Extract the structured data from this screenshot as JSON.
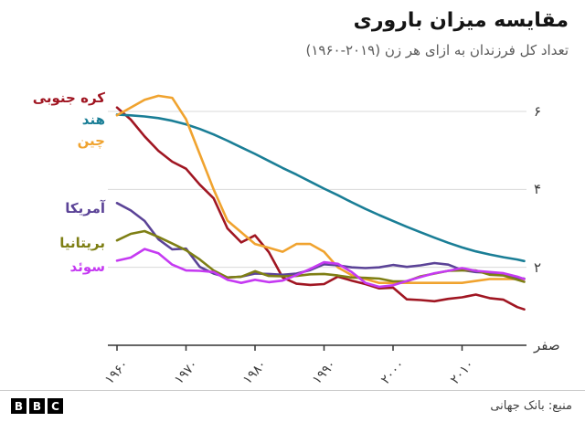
{
  "title": "مقایسه میزان باروری",
  "subtitle": "تعداد کل فرزندان به ازای هر زن (۲۰۱۹-۱۹۶۰)",
  "source": "منبع: بانک جهانی",
  "logo": {
    "letters": [
      "B",
      "B",
      "C"
    ]
  },
  "colors": {
    "axis": "#333333",
    "gridline": "#d9d9d9",
    "south_korea": "#a01622",
    "india": "#1a7e96",
    "china": "#f0a32f",
    "usa": "#5b4397",
    "uk": "#7e7f14",
    "sweden": "#c53af2"
  },
  "chart_data": {
    "type": "line",
    "title": "مقایسه میزان باروری",
    "subtitle": "تعداد کل فرزندان به ازای هر زن (۲۰۱۹-۱۹۶۰)",
    "xlabel": "",
    "ylabel": "",
    "ylim": [
      0,
      6.6
    ],
    "xlim": [
      1960,
      2019
    ],
    "grid": "horizontal",
    "legend_position": "left-of-lines",
    "x": [
      1960,
      1962,
      1964,
      1966,
      1968,
      1970,
      1972,
      1974,
      1976,
      1978,
      1980,
      1982,
      1984,
      1986,
      1988,
      1990,
      1992,
      1994,
      1996,
      1998,
      2000,
      2002,
      2004,
      2006,
      2008,
      2010,
      2012,
      2014,
      2016,
      2018,
      2019
    ],
    "x_ticks": [
      {
        "year": 1960,
        "label": "۱۹۶۰"
      },
      {
        "year": 1970,
        "label": "۱۹۷۰"
      },
      {
        "year": 1980,
        "label": "۱۹۸۰"
      },
      {
        "year": 1990,
        "label": "۱۹۹۰"
      },
      {
        "year": 2000,
        "label": "۲۰۰۰"
      },
      {
        "year": 2010,
        "label": "۲۰۱۰"
      }
    ],
    "y_ticks": [
      {
        "value": 6,
        "label": "۶"
      },
      {
        "value": 4,
        "label": "۴"
      },
      {
        "value": 2,
        "label": "۲"
      },
      {
        "value": 0,
        "label": "صفر"
      }
    ],
    "series": [
      {
        "name": "south-korea",
        "label": "کره جنوبی",
        "color": "#a01622",
        "values": [
          6.1,
          5.79,
          5.36,
          4.99,
          4.71,
          4.53,
          4.12,
          3.77,
          3.0,
          2.64,
          2.82,
          2.39,
          1.74,
          1.58,
          1.55,
          1.57,
          1.76,
          1.66,
          1.57,
          1.46,
          1.48,
          1.18,
          1.16,
          1.13,
          1.19,
          1.23,
          1.3,
          1.21,
          1.17,
          0.98,
          0.92
        ]
      },
      {
        "name": "india",
        "label": "هند",
        "color": "#1a7e96",
        "values": [
          5.92,
          5.9,
          5.87,
          5.83,
          5.76,
          5.67,
          5.55,
          5.41,
          5.25,
          5.08,
          4.91,
          4.73,
          4.55,
          4.38,
          4.2,
          4.02,
          3.85,
          3.67,
          3.5,
          3.34,
          3.19,
          3.04,
          2.9,
          2.76,
          2.63,
          2.51,
          2.41,
          2.33,
          2.26,
          2.2,
          2.16
        ]
      },
      {
        "name": "china",
        "label": "چین",
        "color": "#f0a32f",
        "values": [
          5.9,
          6.1,
          6.3,
          6.4,
          6.35,
          5.8,
          4.9,
          4.0,
          3.2,
          2.9,
          2.6,
          2.5,
          2.4,
          2.6,
          2.6,
          2.4,
          2.0,
          1.8,
          1.7,
          1.6,
          1.6,
          1.6,
          1.6,
          1.6,
          1.6,
          1.6,
          1.65,
          1.7,
          1.7,
          1.7,
          1.7
        ]
      },
      {
        "name": "usa",
        "label": "آمریکا",
        "color": "#5b4397",
        "values": [
          3.65,
          3.46,
          3.19,
          2.72,
          2.46,
          2.48,
          2.01,
          1.84,
          1.74,
          1.76,
          1.84,
          1.83,
          1.81,
          1.84,
          1.93,
          2.08,
          2.05,
          2.0,
          1.98,
          2.0,
          2.06,
          2.01,
          2.05,
          2.11,
          2.07,
          1.93,
          1.88,
          1.86,
          1.82,
          1.73,
          1.71
        ]
      },
      {
        "name": "uk",
        "label": "بریتانیا",
        "color": "#7e7f14",
        "values": [
          2.69,
          2.86,
          2.93,
          2.78,
          2.61,
          2.44,
          2.2,
          1.92,
          1.74,
          1.76,
          1.9,
          1.78,
          1.77,
          1.78,
          1.82,
          1.83,
          1.79,
          1.74,
          1.73,
          1.71,
          1.64,
          1.64,
          1.77,
          1.84,
          1.91,
          1.92,
          1.92,
          1.81,
          1.79,
          1.68,
          1.63
        ]
      },
      {
        "name": "sweden",
        "label": "سوئد",
        "color": "#c53af2",
        "values": [
          2.17,
          2.25,
          2.47,
          2.36,
          2.07,
          1.92,
          1.91,
          1.88,
          1.68,
          1.6,
          1.68,
          1.62,
          1.66,
          1.8,
          1.96,
          2.13,
          2.09,
          1.88,
          1.6,
          1.5,
          1.54,
          1.65,
          1.75,
          1.85,
          1.91,
          1.98,
          1.91,
          1.88,
          1.85,
          1.76,
          1.7
        ]
      }
    ]
  }
}
